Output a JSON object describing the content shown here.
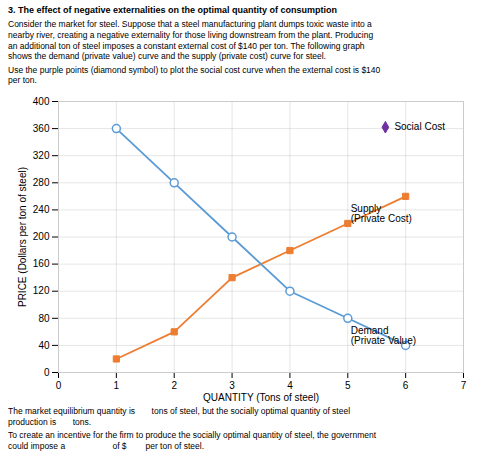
{
  "chart_data": {
    "type": "line",
    "title": "3. The effect of negative externalities on the optimal quantity of consumption",
    "subtitle": [
      "Consider the market for steel. Suppose that a steel manufacturing plant dumps toxic waste into a\nnearby river, creating a negative externality for those living downstream from the plant. Producing\nan additional ton of steel imposes a constant external cost of $140 per ton. The following graph\nshows the demand (private value) curve and the supply (private cost) curve for steel.",
      "Use the purple points (diamond symbol) to plot the social cost curve when the external cost is $140\nper ton."
    ],
    "caption": [
      "The market equilibrium quantity is       tons of steel, but the socially optimal quantity of steel\nproduction is       tons.",
      "To create an incentive for the firm to produce the socially optimal quantity of steel, the government\ncould impose a                    of $        per ton of steel."
    ],
    "xlabel": "QUANTITY (Tons of steel)",
    "ylabel": "PRICE (Dollars per ton of steel)",
    "series": [
      {
        "color": "#ed7d31",
        "marker": "square",
        "x": [
          1,
          2,
          3,
          4,
          5,
          6
        ],
        "values": [
          20,
          60,
          140,
          180,
          220,
          260
        ]
      },
      {
        "color": "#5b9bd5",
        "marker": "circle",
        "x": [
          1,
          2,
          3,
          4,
          5,
          6
        ],
        "values": [
          360,
          280,
          200,
          120,
          80,
          40
        ]
      },
      {
        "name": "Social Cost",
        "color": "#7030a0",
        "marker": "diamond",
        "line_style": "none",
        "x": [
          5.65
        ],
        "values": [
          362
        ]
      }
    ],
    "annotations": [
      {
        "text": "Supply\n(Private Cost)",
        "x": 5.05,
        "y": 248
      },
      {
        "text": "Demand\n(Private Value)",
        "x": 5.05,
        "y": 68
      }
    ],
    "xlim": [
      0,
      7
    ],
    "ylim": [
      0,
      400
    ],
    "xticks": [
      0,
      1,
      2,
      3,
      4,
      5,
      6,
      7
    ],
    "yticks": [
      0,
      40,
      80,
      120,
      160,
      200,
      240,
      280,
      320,
      360,
      400
    ],
    "grid": true
  }
}
